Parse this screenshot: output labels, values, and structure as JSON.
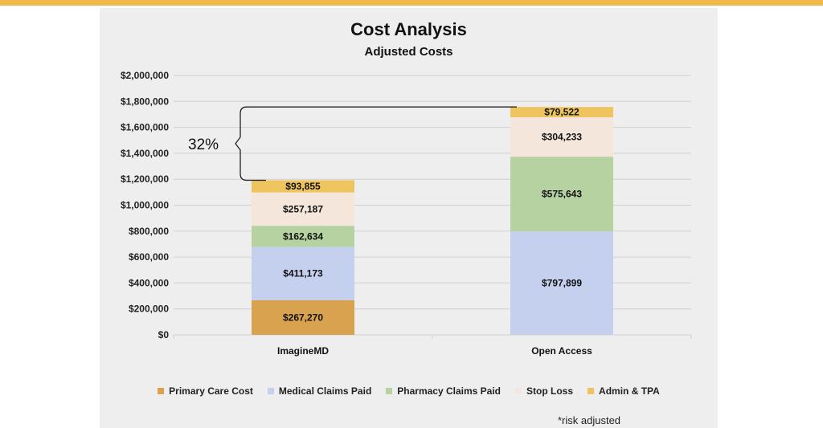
{
  "colors": {
    "top_bar": "#f0b94a",
    "panel": "#eeeeee",
    "grid": "#d0d0d0",
    "bracket": "#222222"
  },
  "chart_data": {
    "type": "bar",
    "stacked": true,
    "title": "Cost Analysis",
    "subtitle": "Adjusted Costs",
    "categories": [
      "ImagineMD",
      "Open Access"
    ],
    "ylim": [
      0,
      2000000
    ],
    "y_ticks": [
      0,
      200000,
      400000,
      600000,
      800000,
      1000000,
      1200000,
      1400000,
      1600000,
      1800000,
      2000000
    ],
    "y_tick_labels": [
      "$0",
      "$200,000",
      "$400,000",
      "$600,000",
      "$800,000",
      "$1,000,000",
      "$1,200,000",
      "$1,400,000",
      "$1,600,000",
      "$1,800,000",
      "$2,000,000"
    ],
    "grid": true,
    "legend_position": "bottom",
    "series": [
      {
        "name": "Primary Care Cost",
        "color": "#d9a24e",
        "values": [
          267270,
          0
        ],
        "labels": [
          "$267,270",
          ""
        ]
      },
      {
        "name": "Medical Claims Paid",
        "color": "#c5d0ef",
        "values": [
          411173,
          797899
        ],
        "labels": [
          "$411,173",
          "$797,899"
        ]
      },
      {
        "name": "Pharmacy Claims Paid",
        "color": "#b5d2a0",
        "values": [
          162634,
          575643
        ],
        "labels": [
          "$162,634",
          "$575,643"
        ]
      },
      {
        "name": "Stop Loss",
        "color": "#f5e6dc",
        "values": [
          257187,
          304233
        ],
        "labels": [
          "$257,187",
          "$304,233"
        ]
      },
      {
        "name": "Admin & TPA",
        "color": "#eec45f",
        "values": [
          93855,
          79522
        ],
        "labels": [
          "$93,855",
          "$79,522"
        ]
      }
    ],
    "annotation": "32%",
    "footnote": "*risk adjusted"
  }
}
